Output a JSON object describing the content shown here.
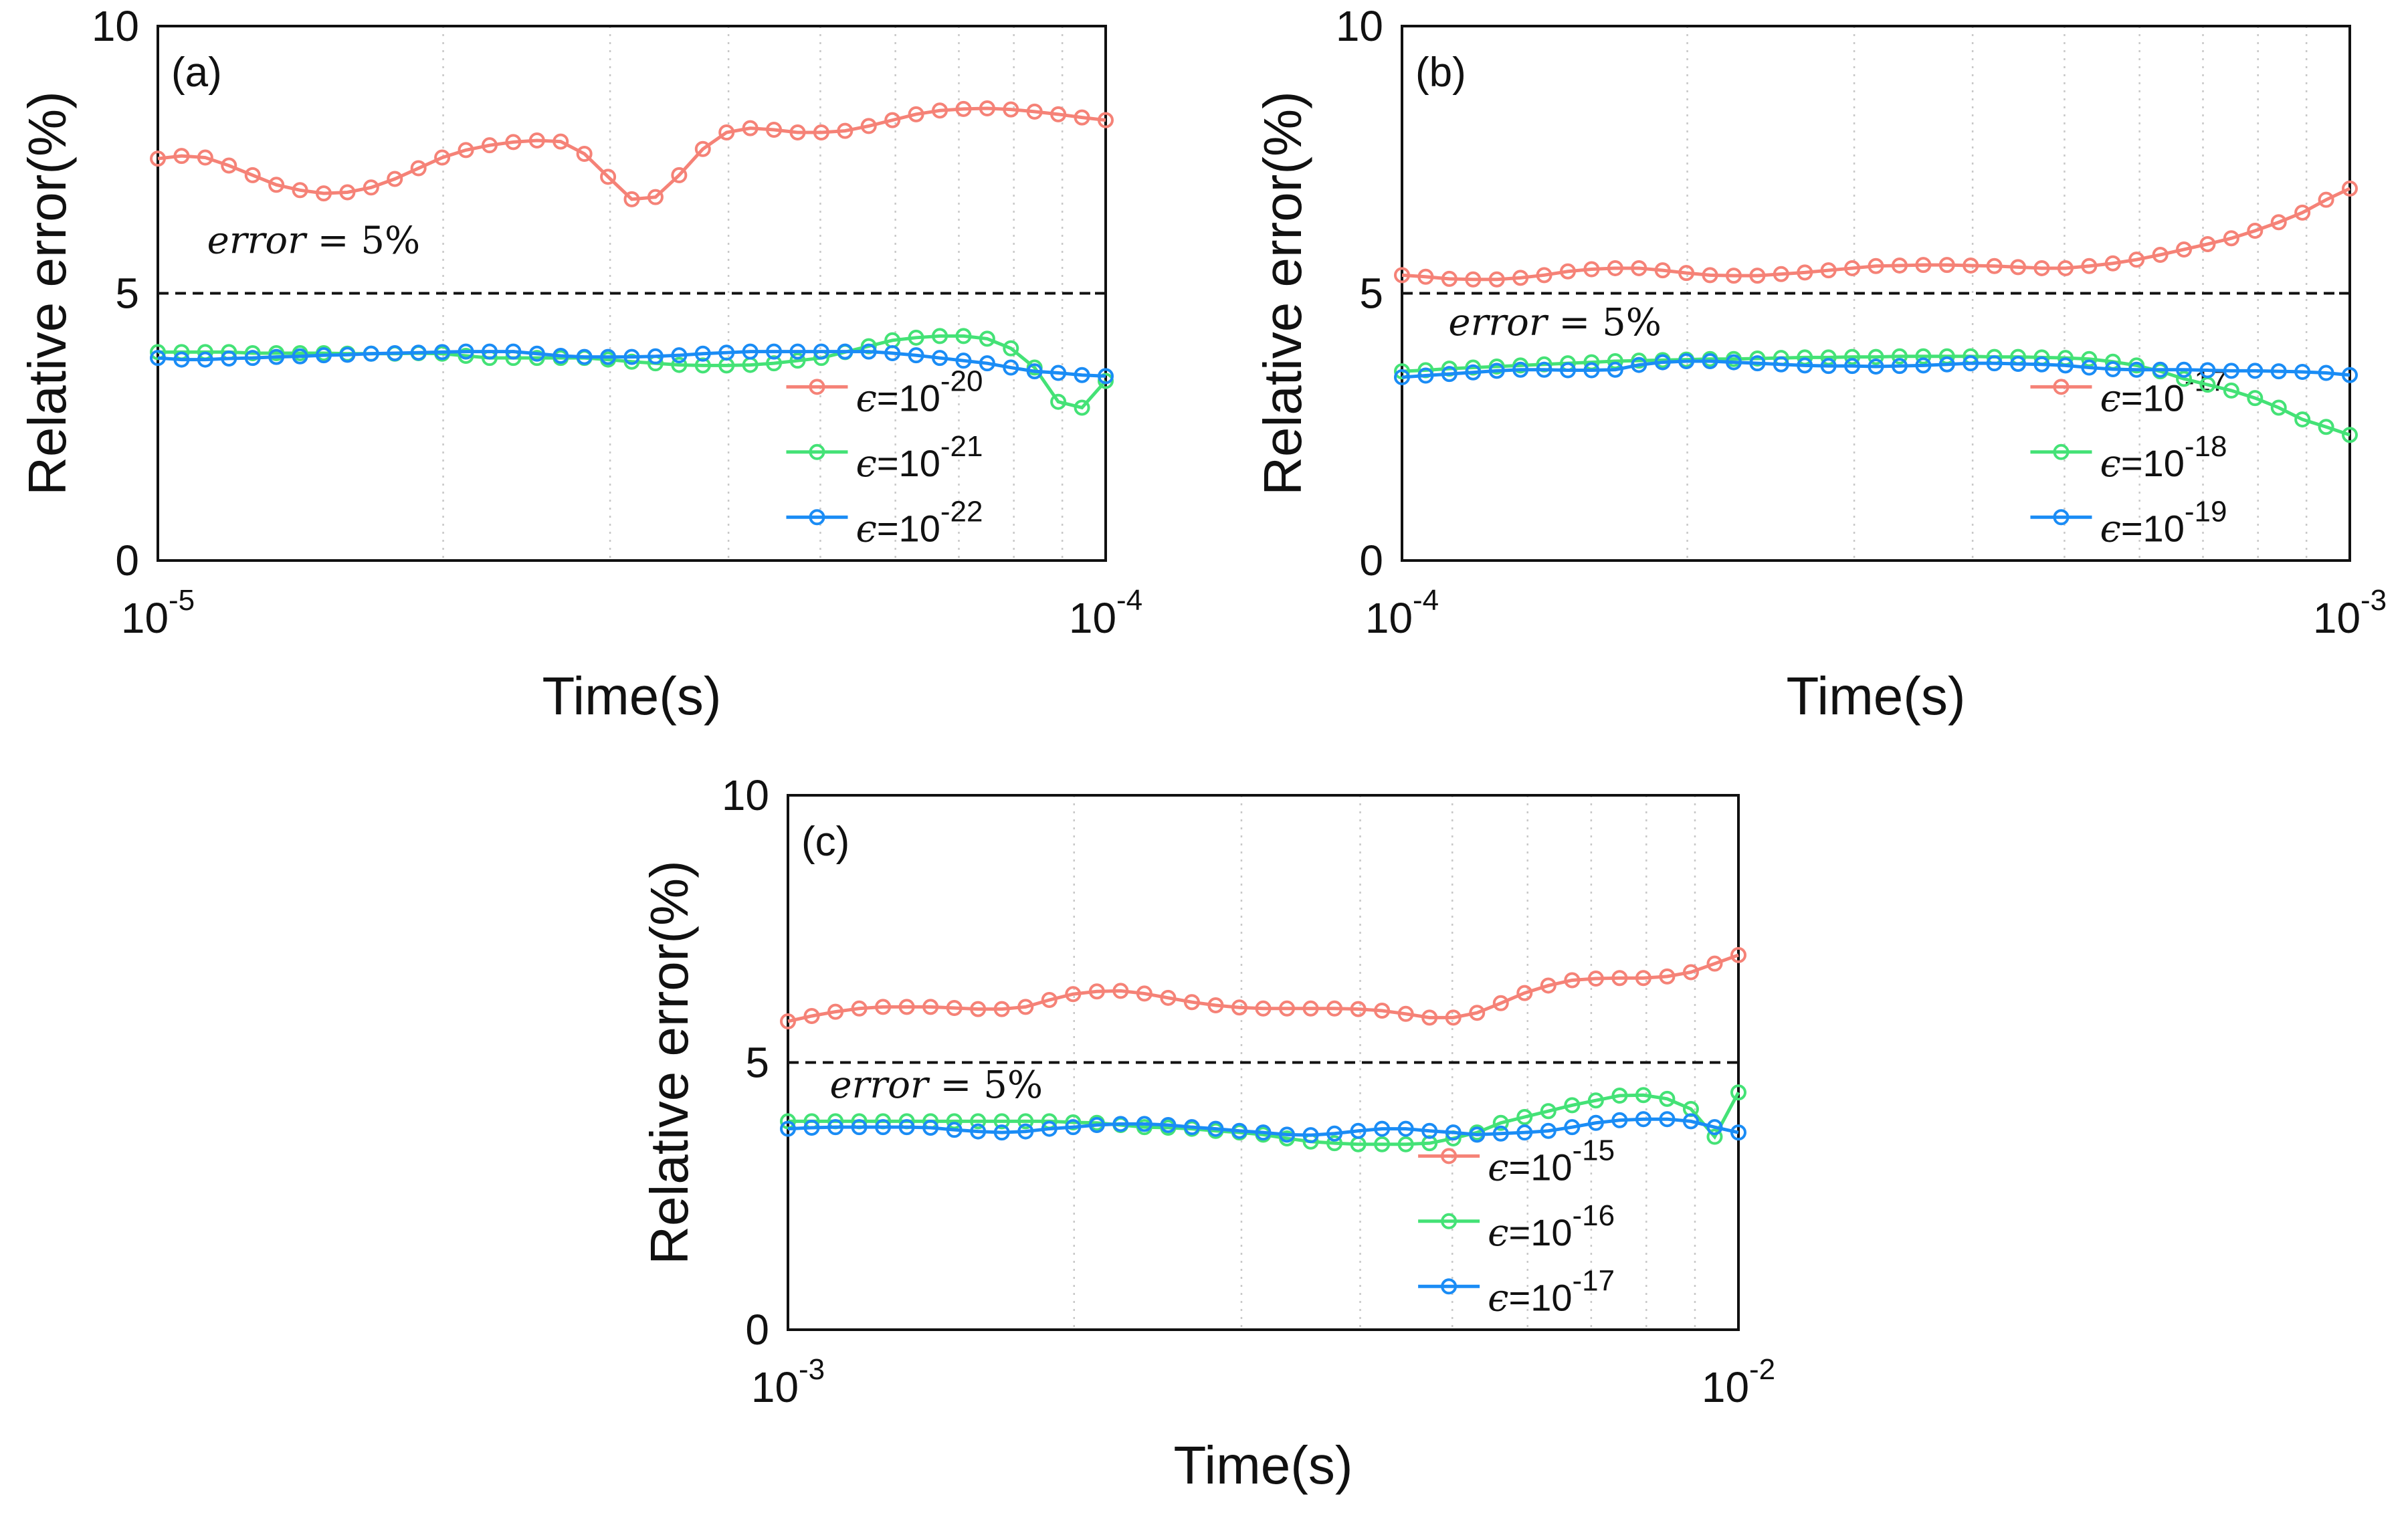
{
  "chart_data": [
    {
      "type": "line",
      "panel_label": "(a)",
      "xscale": "log",
      "xlim": [
        1e-05,
        0.0001
      ],
      "xticks": [
        {
          "base": "10",
          "exp": "-5"
        },
        {
          "base": "10",
          "exp": "-4"
        }
      ],
      "ylim": [
        0,
        10
      ],
      "yticks": [
        "0",
        "5",
        "10"
      ],
      "xlabel": "Time(s)",
      "ylabel": "Relative error(%)",
      "grid": "minor vertical dotted",
      "reference_line": {
        "y": 5,
        "label_italic": "error",
        "label_rest": " = 5%"
      },
      "legend_position": "lower-right",
      "series": [
        {
          "name": "ε=10^-20",
          "eps": "ϵ",
          "base": "=10",
          "exp": "-20",
          "color": "#F58277",
          "values": [
            7.52,
            7.57,
            7.54,
            7.39,
            7.21,
            7.03,
            6.93,
            6.87,
            6.89,
            6.98,
            7.14,
            7.34,
            7.54,
            7.68,
            7.77,
            7.83,
            7.86,
            7.84,
            7.61,
            7.18,
            6.76,
            6.8,
            7.21,
            7.7,
            8.01,
            8.09,
            8.06,
            8.01,
            8.01,
            8.04,
            8.13,
            8.24,
            8.35,
            8.42,
            8.45,
            8.46,
            8.44,
            8.4,
            8.35,
            8.29,
            8.24
          ]
        },
        {
          "name": "ε=10^-21",
          "eps": "ϵ",
          "base": "=10",
          "exp": "-21",
          "color": "#44E276",
          "values": [
            3.9,
            3.9,
            3.9,
            3.9,
            3.88,
            3.88,
            3.88,
            3.88,
            3.87,
            3.87,
            3.87,
            3.88,
            3.87,
            3.83,
            3.79,
            3.79,
            3.79,
            3.79,
            3.79,
            3.76,
            3.72,
            3.69,
            3.66,
            3.65,
            3.65,
            3.66,
            3.69,
            3.74,
            3.79,
            3.9,
            4.01,
            4.12,
            4.17,
            4.2,
            4.2,
            4.15,
            3.97,
            3.61,
            2.97,
            2.86,
            3.36
          ]
        },
        {
          "name": "ε=10^-22",
          "eps": "ϵ",
          "base": "=10",
          "exp": "-22",
          "color": "#1A8CF5",
          "values": [
            3.79,
            3.76,
            3.76,
            3.78,
            3.79,
            3.81,
            3.82,
            3.84,
            3.85,
            3.87,
            3.88,
            3.89,
            3.9,
            3.91,
            3.91,
            3.91,
            3.87,
            3.83,
            3.81,
            3.81,
            3.81,
            3.82,
            3.84,
            3.87,
            3.89,
            3.91,
            3.91,
            3.91,
            3.91,
            3.91,
            3.91,
            3.88,
            3.84,
            3.79,
            3.74,
            3.69,
            3.61,
            3.54,
            3.51,
            3.47,
            3.45
          ]
        }
      ]
    },
    {
      "type": "line",
      "panel_label": "(b)",
      "xscale": "log",
      "xlim": [
        0.0001,
        0.001
      ],
      "xticks": [
        {
          "base": "10",
          "exp": "-4"
        },
        {
          "base": "10",
          "exp": "-3"
        }
      ],
      "ylim": [
        0,
        10
      ],
      "yticks": [
        "0",
        "5",
        "10"
      ],
      "xlabel": "Time(s)",
      "ylabel": "Relative error(%)",
      "grid": "minor vertical dotted",
      "reference_line": {
        "y": 5,
        "label_italic": "error",
        "label_rest": " = 5%"
      },
      "legend_position": "lower-right",
      "series": [
        {
          "name": "ε=10^-17",
          "eps": "ϵ",
          "base": "=10",
          "exp": "-17",
          "color": "#F58277",
          "values": [
            5.34,
            5.31,
            5.27,
            5.26,
            5.26,
            5.29,
            5.34,
            5.41,
            5.45,
            5.47,
            5.47,
            5.43,
            5.38,
            5.34,
            5.33,
            5.33,
            5.36,
            5.39,
            5.43,
            5.47,
            5.51,
            5.52,
            5.53,
            5.53,
            5.52,
            5.51,
            5.49,
            5.47,
            5.47,
            5.51,
            5.56,
            5.63,
            5.72,
            5.82,
            5.92,
            6.03,
            6.17,
            6.33,
            6.51,
            6.75,
            6.96
          ]
        },
        {
          "name": "ε=10^-18",
          "eps": "ϵ",
          "base": "=10",
          "exp": "-18",
          "color": "#44E276",
          "values": [
            3.54,
            3.56,
            3.59,
            3.61,
            3.63,
            3.65,
            3.67,
            3.69,
            3.71,
            3.73,
            3.74,
            3.75,
            3.76,
            3.77,
            3.77,
            3.78,
            3.79,
            3.8,
            3.8,
            3.81,
            3.81,
            3.82,
            3.82,
            3.82,
            3.82,
            3.81,
            3.81,
            3.8,
            3.79,
            3.77,
            3.72,
            3.65,
            3.54,
            3.4,
            3.29,
            3.18,
            3.04,
            2.86,
            2.64,
            2.5,
            2.35
          ]
        },
        {
          "name": "ε=10^-19",
          "eps": "ϵ",
          "base": "=10",
          "exp": "-19",
          "color": "#1A8CF5",
          "values": [
            3.43,
            3.46,
            3.49,
            3.52,
            3.55,
            3.57,
            3.57,
            3.56,
            3.56,
            3.57,
            3.66,
            3.71,
            3.73,
            3.73,
            3.71,
            3.69,
            3.67,
            3.65,
            3.64,
            3.64,
            3.63,
            3.64,
            3.65,
            3.67,
            3.69,
            3.69,
            3.68,
            3.67,
            3.65,
            3.61,
            3.58,
            3.57,
            3.57,
            3.57,
            3.56,
            3.55,
            3.55,
            3.54,
            3.53,
            3.51,
            3.47
          ]
        }
      ]
    },
    {
      "type": "line",
      "panel_label": "(c)",
      "xscale": "log",
      "xlim": [
        0.001,
        0.01
      ],
      "xticks": [
        {
          "base": "10",
          "exp": "-3"
        },
        {
          "base": "10",
          "exp": "-2"
        }
      ],
      "ylim": [
        0,
        10
      ],
      "yticks": [
        "0",
        "5",
        "10"
      ],
      "xlabel": "Time(s)",
      "ylabel": "Relative error(%)",
      "grid": "minor vertical dotted",
      "reference_line": {
        "y": 5,
        "label_italic": "error",
        "label_rest": " = 5%"
      },
      "legend_position": "lower-right",
      "series": [
        {
          "name": "ε=10^-15",
          "eps": "ϵ",
          "base": "=10",
          "exp": "-15",
          "color": "#F58277",
          "values": [
            5.77,
            5.87,
            5.95,
            6.01,
            6.04,
            6.04,
            6.04,
            6.02,
            6.0,
            6.0,
            6.04,
            6.17,
            6.28,
            6.33,
            6.34,
            6.29,
            6.21,
            6.13,
            6.07,
            6.03,
            6.01,
            6.01,
            6.01,
            6.01,
            6.0,
            5.97,
            5.91,
            5.84,
            5.84,
            5.93,
            6.11,
            6.3,
            6.44,
            6.54,
            6.57,
            6.58,
            6.58,
            6.61,
            6.69,
            6.85,
            7.01
          ]
        },
        {
          "name": "ε=10^-16",
          "eps": "ϵ",
          "base": "=10",
          "exp": "-16",
          "color": "#44E276",
          "values": [
            3.9,
            3.9,
            3.9,
            3.9,
            3.9,
            3.9,
            3.9,
            3.9,
            3.9,
            3.9,
            3.9,
            3.9,
            3.88,
            3.87,
            3.83,
            3.79,
            3.78,
            3.76,
            3.72,
            3.69,
            3.65,
            3.58,
            3.52,
            3.49,
            3.47,
            3.47,
            3.47,
            3.49,
            3.58,
            3.69,
            3.87,
            3.98,
            4.09,
            4.2,
            4.29,
            4.38,
            4.39,
            4.32,
            4.13,
            3.61,
            4.44
          ]
        },
        {
          "name": "ε=10^-17",
          "eps": "ϵ",
          "base": "=10",
          "exp": "-17",
          "color": "#1A8CF5",
          "values": [
            3.76,
            3.78,
            3.79,
            3.79,
            3.79,
            3.79,
            3.78,
            3.74,
            3.71,
            3.69,
            3.71,
            3.76,
            3.79,
            3.83,
            3.85,
            3.85,
            3.83,
            3.79,
            3.76,
            3.72,
            3.69,
            3.65,
            3.64,
            3.67,
            3.72,
            3.76,
            3.76,
            3.72,
            3.69,
            3.65,
            3.67,
            3.69,
            3.72,
            3.79,
            3.87,
            3.92,
            3.94,
            3.94,
            3.9,
            3.79,
            3.69
          ]
        }
      ]
    }
  ]
}
